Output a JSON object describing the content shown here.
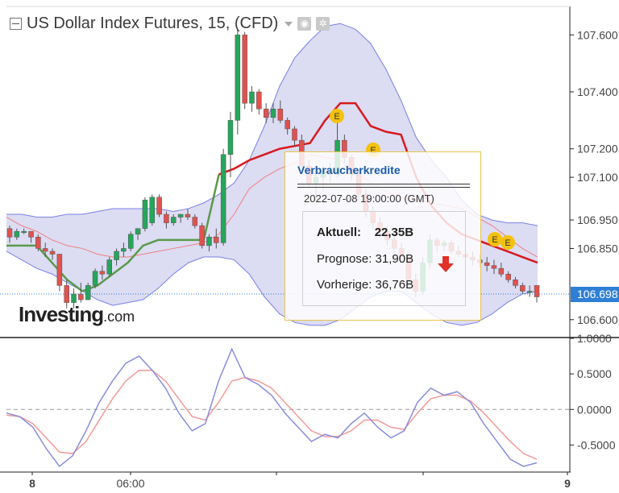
{
  "header": {
    "title": "US Dollar Index Futures, 15, (CFD)",
    "camera_icon": "camera-icon",
    "gear_icon": "gear-icon"
  },
  "logo": {
    "text": "Investing",
    "suffix": ".com"
  },
  "current_price_label": "106.698",
  "colors": {
    "bull": "#26a65b",
    "bear": "#e0524f",
    "band": "#7b7fe6",
    "band_fill": "#dcdcf3",
    "supertrend_up": "#5a9a4a",
    "supertrend_down": "#d8191e",
    "ma": "#f08080",
    "osc_fast": "#8a8cdc",
    "osc_slow": "#f49a98",
    "price_tag": "#2f7fd6"
  },
  "event_popup": {
    "title": "Verbraucherkredite",
    "datetime": "2022-07-08 19:00:00 (GMT)",
    "actual_label": "Aktuell:",
    "actual_value": "22,35B",
    "forecast": "Prognose: 31,90B",
    "previous": "Vorherige: 36,76B",
    "trend_icon": "down-arrow-icon"
  },
  "event_markers": [
    "E",
    "E",
    "E",
    "E"
  ],
  "chart_data": {
    "type": "candlestick",
    "price_axis": {
      "ticks": [
        "107.600",
        "107.400",
        "107.200",
        "107.100",
        "106.950",
        "106.850",
        "106.600"
      ],
      "range": [
        106.54,
        107.7
      ]
    },
    "oscillator_axis": {
      "ticks": [
        "1.0000",
        "0.5000",
        "0.0000",
        "-0.5000"
      ],
      "range": [
        -0.88,
        1.0
      ]
    },
    "x_ticks": [
      "8",
      "06:00",
      "9"
    ],
    "candles": [
      [
        106.92,
        106.93,
        106.87,
        106.89
      ],
      [
        106.89,
        106.92,
        106.88,
        106.91
      ],
      [
        106.91,
        106.92,
        106.9,
        106.91
      ],
      [
        106.91,
        106.91,
        106.87,
        106.89
      ],
      [
        106.89,
        106.9,
        106.84,
        106.85
      ],
      [
        106.85,
        106.87,
        106.82,
        106.84
      ],
      [
        106.84,
        106.85,
        106.81,
        106.83
      ],
      [
        106.83,
        106.83,
        106.7,
        106.72
      ],
      [
        106.72,
        106.74,
        106.64,
        106.66
      ],
      [
        106.66,
        106.71,
        106.64,
        106.69
      ],
      [
        106.69,
        106.73,
        106.66,
        106.67
      ],
      [
        106.67,
        106.73,
        106.67,
        106.72
      ],
      [
        106.72,
        106.78,
        106.71,
        106.77
      ],
      [
        106.77,
        106.79,
        106.74,
        106.76
      ],
      [
        106.76,
        106.82,
        106.75,
        106.81
      ],
      [
        106.81,
        106.85,
        106.79,
        106.84
      ],
      [
        106.84,
        106.87,
        106.82,
        106.85
      ],
      [
        106.85,
        106.91,
        106.84,
        106.9
      ],
      [
        106.9,
        106.92,
        106.88,
        106.92
      ],
      [
        106.92,
        107.03,
        106.91,
        107.02
      ],
      [
        106.94,
        107.04,
        106.93,
        107.03
      ],
      [
        107.03,
        107.04,
        106.96,
        106.97
      ],
      [
        106.97,
        106.98,
        106.92,
        106.94
      ],
      [
        106.94,
        106.97,
        106.93,
        106.96
      ],
      [
        106.96,
        106.97,
        106.94,
        106.97
      ],
      [
        106.97,
        106.99,
        106.95,
        106.96
      ],
      [
        106.96,
        106.97,
        106.92,
        106.93
      ],
      [
        106.93,
        106.94,
        106.85,
        106.86
      ],
      [
        106.86,
        106.9,
        106.84,
        106.89
      ],
      [
        106.89,
        106.92,
        106.85,
        106.87
      ],
      [
        106.87,
        107.2,
        106.86,
        107.18
      ],
      [
        107.18,
        107.33,
        107.1,
        107.3
      ],
      [
        107.3,
        107.62,
        107.25,
        107.6
      ],
      [
        107.6,
        107.61,
        107.34,
        107.36
      ],
      [
        107.36,
        107.42,
        107.33,
        107.4
      ],
      [
        107.4,
        107.41,
        107.32,
        107.34
      ],
      [
        107.34,
        107.36,
        107.29,
        107.31
      ],
      [
        107.31,
        107.36,
        107.29,
        107.34
      ],
      [
        107.34,
        107.37,
        107.29,
        107.3
      ],
      [
        107.3,
        107.31,
        107.25,
        107.27
      ],
      [
        107.27,
        107.28,
        107.21,
        107.23
      ],
      [
        107.23,
        107.25,
        107.12,
        107.14
      ],
      [
        107.14,
        107.16,
        107.06,
        107.08
      ],
      [
        107.08,
        107.12,
        107.02,
        107.1
      ],
      [
        107.1,
        107.14,
        107.05,
        107.12
      ],
      [
        107.12,
        107.15,
        107.08,
        107.11
      ],
      [
        107.11,
        107.3,
        107.1,
        107.23
      ],
      [
        107.23,
        107.25,
        107.15,
        107.17
      ],
      [
        107.17,
        107.18,
        107.09,
        107.11
      ],
      [
        107.11,
        107.13,
        107.02,
        107.04
      ],
      [
        107.04,
        107.06,
        106.96,
        106.98
      ],
      [
        106.98,
        107.0,
        106.92,
        106.94
      ],
      [
        106.94,
        106.96,
        106.89,
        106.91
      ],
      [
        106.91,
        106.93,
        106.86,
        106.88
      ],
      [
        106.88,
        106.9,
        106.83,
        106.85
      ],
      [
        106.85,
        106.87,
        106.8,
        106.82
      ],
      [
        106.82,
        106.84,
        106.72,
        106.74
      ],
      [
        106.74,
        106.76,
        106.68,
        106.7
      ],
      [
        106.7,
        106.82,
        106.69,
        106.8
      ],
      [
        106.8,
        106.9,
        106.78,
        106.88
      ],
      [
        106.88,
        106.89,
        106.84,
        106.86
      ],
      [
        106.86,
        106.88,
        106.84,
        106.87
      ],
      [
        106.87,
        106.88,
        106.83,
        106.84
      ],
      [
        106.84,
        106.86,
        106.82,
        106.83
      ],
      [
        106.83,
        106.85,
        106.8,
        106.82
      ],
      [
        106.82,
        106.84,
        106.79,
        106.81
      ],
      [
        106.81,
        106.83,
        106.78,
        106.8
      ],
      [
        106.8,
        106.82,
        106.77,
        106.79
      ],
      [
        106.79,
        106.81,
        106.76,
        106.78
      ],
      [
        106.78,
        106.8,
        106.75,
        106.76
      ],
      [
        106.76,
        106.77,
        106.73,
        106.74
      ],
      [
        106.74,
        106.75,
        106.71,
        106.72
      ],
      [
        106.72,
        106.73,
        106.69,
        106.7
      ],
      [
        106.7,
        106.72,
        106.68,
        106.7
      ],
      [
        106.72,
        106.72,
        106.66,
        106.68
      ]
    ],
    "bb_upper": [
      106.97,
      106.97,
      106.96,
      106.96,
      106.97,
      106.97,
      106.98,
      106.99,
      106.99,
      106.99,
      106.99,
      106.98,
      106.99,
      107.01,
      107.04,
      107.08,
      107.16,
      107.28,
      107.42,
      107.52,
      107.58,
      107.63,
      107.64,
      107.62,
      107.57,
      107.48,
      107.37,
      107.24,
      107.16,
      107.1,
      107.02,
      106.97,
      106.95,
      106.94,
      106.94,
      106.93
    ],
    "bb_lower": [
      106.84,
      106.81,
      106.78,
      106.76,
      106.73,
      106.7,
      106.67,
      106.65,
      106.66,
      106.67,
      106.71,
      106.76,
      106.8,
      106.82,
      106.82,
      106.81,
      106.76,
      106.68,
      106.62,
      106.59,
      106.58,
      106.58,
      106.6,
      106.64,
      106.68,
      106.7,
      106.7,
      106.66,
      106.62,
      106.59,
      106.58,
      106.59,
      106.62,
      106.66,
      106.69,
      106.7
    ],
    "supertrend": [
      106.86,
      106.86,
      106.86,
      106.8,
      106.74,
      106.7,
      106.72,
      106.76,
      106.8,
      106.86,
      106.88,
      106.88,
      106.88,
      106.88,
      107.11,
      107.13,
      107.16,
      107.18,
      107.2,
      107.21,
      107.22,
      107.3,
      107.36,
      107.36,
      107.28,
      107.26,
      107.25,
      107.1,
      107.0,
      106.94,
      106.9,
      106.88,
      106.86,
      106.84,
      106.82,
      106.8
    ],
    "supertrend_bull_until": 14,
    "moving_average": [
      106.96,
      106.93,
      106.91,
      106.88,
      106.86,
      106.85,
      106.83,
      106.82,
      106.82,
      106.83,
      106.84,
      106.85,
      106.86,
      106.87,
      106.9,
      106.97,
      107.06,
      107.1,
      107.13,
      107.15,
      107.18,
      107.17,
      107.16,
      107.12,
      107.08,
      107.05,
      107.03,
      107.02,
      107.01,
      107.0,
      106.99,
      106.96,
      106.93,
      106.89,
      106.85,
      106.82
    ],
    "oscillator_fast": [
      -0.05,
      -0.1,
      -0.25,
      -0.55,
      -0.8,
      -0.65,
      -0.3,
      0.1,
      0.4,
      0.65,
      0.75,
      0.55,
      0.3,
      -0.05,
      -0.3,
      -0.2,
      0.4,
      0.85,
      0.45,
      0.35,
      0.2,
      -0.05,
      -0.25,
      -0.45,
      -0.35,
      -0.4,
      -0.2,
      -0.05,
      -0.25,
      -0.4,
      -0.3,
      0.1,
      0.3,
      0.2,
      0.25,
      0.1,
      -0.2,
      -0.45,
      -0.7,
      -0.8,
      -0.75
    ],
    "oscillator_slow": [
      -0.08,
      -0.1,
      -0.2,
      -0.4,
      -0.6,
      -0.62,
      -0.45,
      -0.15,
      0.15,
      0.4,
      0.55,
      0.55,
      0.4,
      0.15,
      -0.1,
      -0.15,
      0.1,
      0.4,
      0.45,
      0.4,
      0.3,
      0.1,
      -0.1,
      -0.3,
      -0.38,
      -0.38,
      -0.3,
      -0.15,
      -0.15,
      -0.25,
      -0.28,
      -0.05,
      0.15,
      0.2,
      0.2,
      0.12,
      -0.05,
      -0.25,
      -0.45,
      -0.62,
      -0.7
    ]
  }
}
